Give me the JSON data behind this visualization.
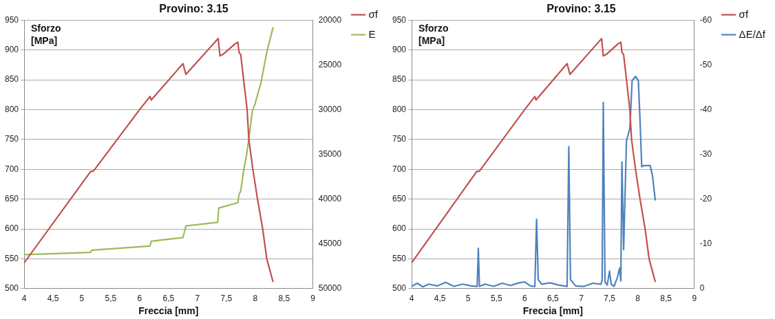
{
  "chart_data": [
    {
      "type": "line",
      "title": "Provino: 3.15",
      "xlabel": "Freccia [mm]",
      "ylabel": "Sforzo [MPa]",
      "xlim": [
        4,
        9
      ],
      "xticks": [
        4,
        {
          "value": 4.5,
          "label": "4,5"
        },
        5,
        {
          "value": 5.5,
          "label": "5,5"
        },
        6,
        {
          "value": 6.5,
          "label": "6,5"
        },
        7,
        {
          "value": 7.5,
          "label": "7,5"
        },
        8,
        {
          "value": 8.5,
          "label": "8,5"
        },
        9
      ],
      "ylim": [
        500,
        950
      ],
      "yticks": [
        500,
        550,
        600,
        650,
        700,
        750,
        800,
        850,
        900,
        950
      ],
      "y2lim": [
        50000,
        20000
      ],
      "y2ticks": [
        20000,
        25000,
        30000,
        35000,
        40000,
        45000,
        50000
      ],
      "grid": "y",
      "legend": "right",
      "marker": "none",
      "line_style": "solid",
      "series": [
        {
          "name": "σf",
          "color": "#c0504d",
          "x": [
            4.0,
            5.15,
            5.2,
            6.0,
            6.18,
            6.2,
            6.75,
            6.8,
            7.36,
            7.39,
            7.45,
            7.65,
            7.7,
            7.72,
            7.75,
            7.8,
            7.86,
            7.89,
            7.96,
            8.04,
            8.13,
            8.2,
            8.31
          ],
          "values": [
            543,
            696,
            697,
            800,
            822,
            816,
            877,
            859,
            919,
            890,
            893,
            910,
            913,
            896,
            892,
            850,
            800,
            750,
            700,
            650,
            600,
            550,
            511
          ]
        },
        {
          "name": "E",
          "color": "#9bbb59",
          "axis": "y2",
          "x": [
            4.0,
            5.15,
            5.17,
            6.18,
            6.2,
            6.75,
            6.8,
            7.35,
            7.37,
            7.7,
            7.72,
            7.75,
            7.8,
            7.85,
            7.9,
            7.95,
            8.0,
            8.1,
            8.2,
            8.31
          ],
          "values": [
            46200,
            45950,
            45700,
            45250,
            44700,
            44300,
            43000,
            42600,
            41000,
            40400,
            39500,
            39100,
            36800,
            35100,
            32800,
            30200,
            29300,
            27000,
            23600,
            20800
          ]
        }
      ]
    },
    {
      "type": "line",
      "title": "Provino: 3.15",
      "xlabel": "Freccia [mm]",
      "ylabel": "Sforzo [MPa]",
      "xlim": [
        4,
        9
      ],
      "xticks": [
        4,
        {
          "value": 4.5,
          "label": "4,5"
        },
        5,
        {
          "value": 5.5,
          "label": "5,5"
        },
        6,
        {
          "value": 6.5,
          "label": "6,5"
        },
        7,
        {
          "value": 7.5,
          "label": "7,5"
        },
        8,
        {
          "value": 8.5,
          "label": "8,5"
        },
        9
      ],
      "ylim": [
        500,
        950
      ],
      "yticks": [
        500,
        550,
        600,
        650,
        700,
        750,
        800,
        850,
        900,
        950
      ],
      "y2lim": [
        0,
        -60
      ],
      "y2ticks": [
        0,
        -10,
        -20,
        -30,
        -40,
        -50,
        -60
      ],
      "grid": "y",
      "legend": "right",
      "marker": "none",
      "line_style": "solid",
      "series": [
        {
          "name": "σf",
          "color": "#c0504d",
          "x": [
            4.0,
            5.15,
            5.2,
            6.0,
            6.18,
            6.2,
            6.75,
            6.8,
            7.36,
            7.39,
            7.45,
            7.65,
            7.7,
            7.72,
            7.75,
            7.8,
            7.86,
            7.89,
            7.96,
            8.04,
            8.13,
            8.2,
            8.31
          ],
          "values": [
            543,
            696,
            697,
            800,
            822,
            816,
            877,
            859,
            919,
            890,
            893,
            910,
            913,
            896,
            892,
            850,
            800,
            750,
            700,
            650,
            600,
            550,
            511
          ]
        },
        {
          "name": "ΔE/Δf",
          "color": "#4f81bd",
          "axis": "y2",
          "x": [
            4.0,
            4.1,
            4.2,
            4.3,
            4.45,
            4.6,
            4.75,
            4.9,
            5.05,
            5.16,
            5.18,
            5.2,
            5.3,
            5.45,
            5.6,
            5.75,
            5.9,
            6.0,
            6.1,
            6.18,
            6.21,
            6.24,
            6.3,
            6.45,
            6.6,
            6.75,
            6.78,
            6.81,
            6.9,
            7.05,
            7.2,
            7.35,
            7.37,
            7.39,
            7.42,
            7.46,
            7.5,
            7.53,
            7.58,
            7.64,
            7.68,
            7.7,
            7.72,
            7.75,
            7.8,
            7.86,
            7.9,
            7.96,
            8.01,
            8.04,
            8.07,
            8.1,
            8.22,
            8.26,
            8.31
          ],
          "values": [
            -0.5,
            -1.2,
            -0.4,
            -1.0,
            -0.6,
            -1.4,
            -0.5,
            -1.0,
            -0.6,
            -0.5,
            -9.0,
            -0.5,
            -1.0,
            -0.5,
            -1.2,
            -0.7,
            -1.3,
            -1.5,
            -0.6,
            -0.5,
            -15.5,
            -2.0,
            -1.0,
            -1.3,
            -0.8,
            -0.5,
            -31.7,
            -2.0,
            -0.6,
            -0.5,
            -1.2,
            -1.0,
            -2.0,
            -41.6,
            -1.5,
            -0.8,
            -3.9,
            -1.0,
            -0.5,
            -2.5,
            -4.6,
            -1.7,
            -28.3,
            -8.7,
            -33,
            -35.8,
            -46.5,
            -47.4,
            -46.5,
            -37.6,
            -27.2,
            -27.5,
            -27.5,
            -25.2,
            -19.7
          ]
        }
      ]
    }
  ]
}
